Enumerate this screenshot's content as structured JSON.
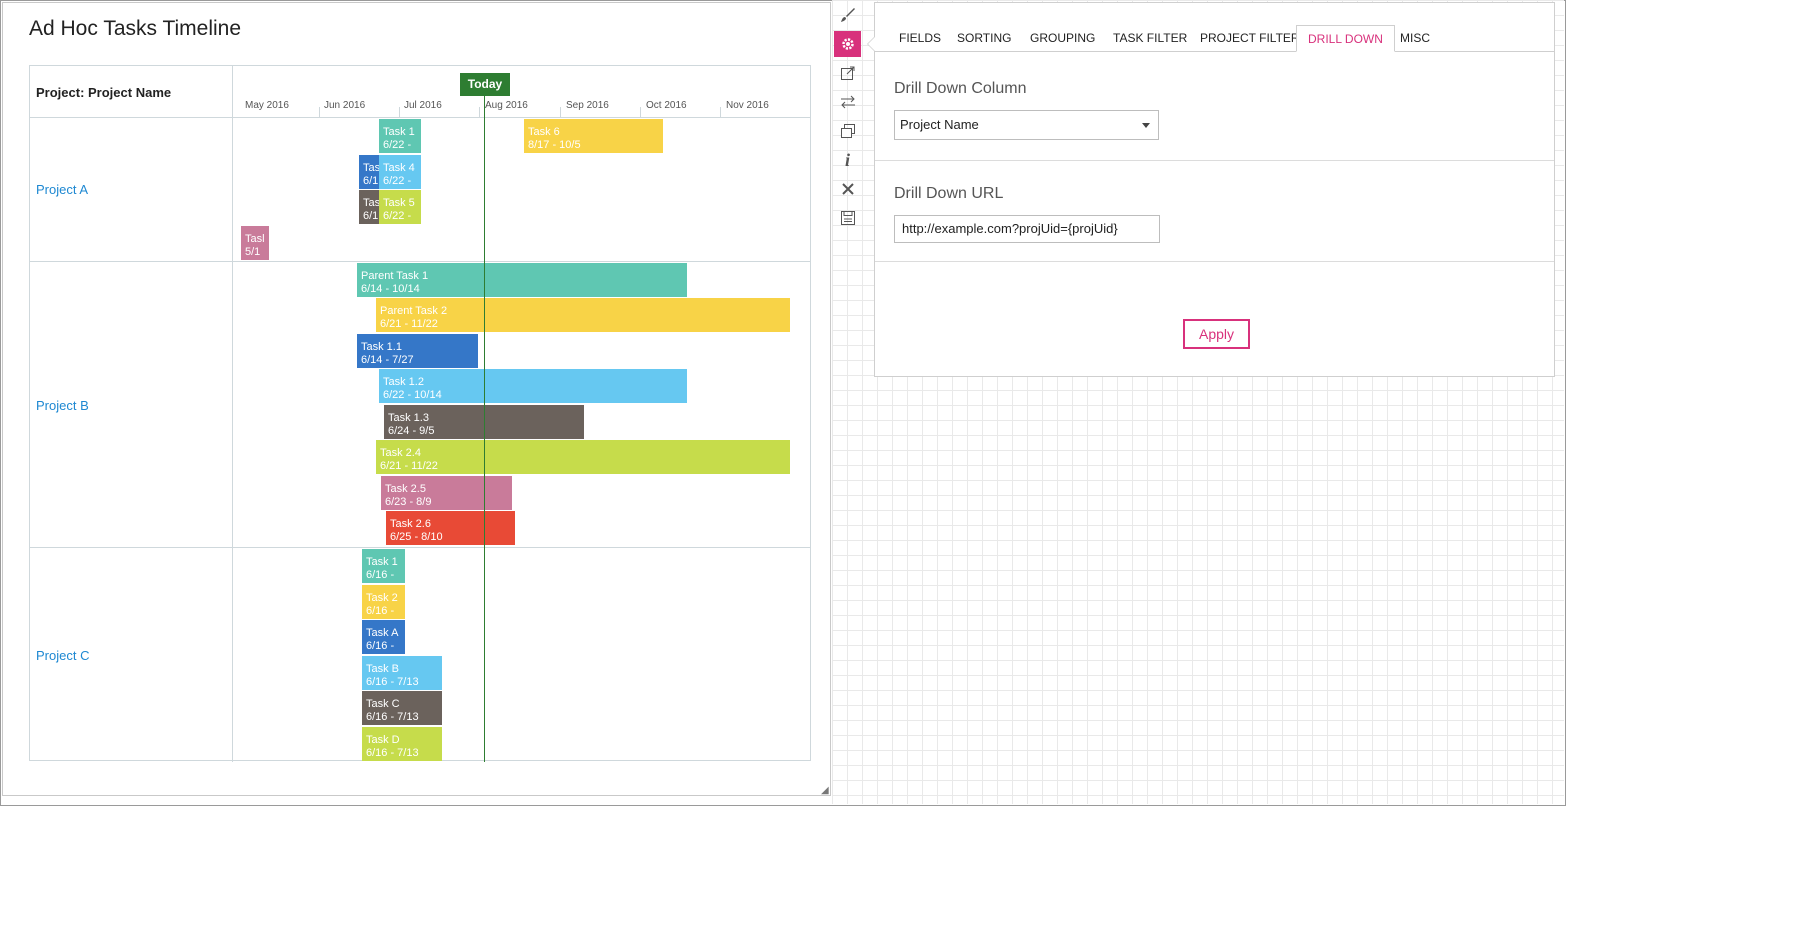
{
  "webpart": {
    "title": "Ad Hoc Tasks Timeline",
    "header_label": "Project: Project Name",
    "today_label": "Today",
    "months": [
      "May 2016",
      "Jun 2016",
      "Jul 2016",
      "Aug 2016",
      "Sep 2016",
      "Oct 2016",
      "Nov 2016"
    ],
    "lanes": [
      {
        "name": "Project A"
      },
      {
        "name": "Project B"
      },
      {
        "name": "Project C"
      }
    ],
    "bars": [
      {
        "lane": "Project A",
        "label": "Task 1",
        "dates": "6/22 -",
        "color": "#5fc7b2"
      },
      {
        "lane": "Project A",
        "label": "Task 6",
        "dates": "8/17 - 10/5",
        "color": "#f8d347"
      },
      {
        "lane": "Project A",
        "label": "Task",
        "dates": "6/1",
        "color": "#3577c8"
      },
      {
        "lane": "Project A",
        "label": "Task 4",
        "dates": "6/22 -",
        "color": "#66c8f1"
      },
      {
        "lane": "Project A",
        "label": "Task",
        "dates": "6/1",
        "color": "#6b625c"
      },
      {
        "lane": "Project A",
        "label": "Task 5",
        "dates": "6/22 -",
        "color": "#c6dc4b"
      },
      {
        "lane": "Project A",
        "label": "Tasl",
        "dates": "5/1",
        "color": "#c97b9a"
      },
      {
        "lane": "Project B",
        "label": "Parent Task 1",
        "dates": "6/14 - 10/14",
        "color": "#5fc7b2"
      },
      {
        "lane": "Project B",
        "label": "Parent Task 2",
        "dates": "6/21 - 11/22",
        "color": "#f8d347"
      },
      {
        "lane": "Project B",
        "label": "Task 1.1",
        "dates": "6/14 - 7/27",
        "color": "#3577c8"
      },
      {
        "lane": "Project B",
        "label": "Task 1.2",
        "dates": "6/22 - 10/14",
        "color": "#66c8f1"
      },
      {
        "lane": "Project B",
        "label": "Task 1.3",
        "dates": "6/24 - 9/5",
        "color": "#6b625c"
      },
      {
        "lane": "Project B",
        "label": "Task 2.4",
        "dates": "6/21 - 11/22",
        "color": "#c6dc4b"
      },
      {
        "lane": "Project B",
        "label": "Task 2.5",
        "dates": "6/23 - 8/9",
        "color": "#c97b9a"
      },
      {
        "lane": "Project B",
        "label": "Task 2.6",
        "dates": "6/25 - 8/10",
        "color": "#e84a36"
      },
      {
        "lane": "Project C",
        "label": "Task 1",
        "dates": "6/16 -",
        "color": "#5fc7b2"
      },
      {
        "lane": "Project C",
        "label": "Task 2",
        "dates": "6/16 -",
        "color": "#f8d347"
      },
      {
        "lane": "Project C",
        "label": "Task A",
        "dates": "6/16 -",
        "color": "#3577c8"
      },
      {
        "lane": "Project C",
        "label": "Task B",
        "dates": "6/16 - 7/13",
        "color": "#66c8f1"
      },
      {
        "lane": "Project C",
        "label": "Task C",
        "dates": "6/16 - 7/13",
        "color": "#6b625c"
      },
      {
        "lane": "Project C",
        "label": "Task D",
        "dates": "6/16 - 7/13",
        "color": "#c6dc4b"
      }
    ]
  },
  "toolbar": {
    "icons": [
      "brush-icon",
      "gear-icon",
      "export-icon",
      "swap-icon",
      "copy-icon",
      "info-icon",
      "close-icon",
      "save-icon"
    ],
    "active": "gear-icon",
    "accent": "#d8317c"
  },
  "settings": {
    "tabs": [
      "FIELDS",
      "SORTING",
      "GROUPING",
      "TASK FILTER",
      "PROJECT FILTER",
      "DRILL DOWN",
      "MISC"
    ],
    "active_tab": "DRILL DOWN",
    "drill_down_column_label": "Drill Down Column",
    "drill_down_column_value": "Project Name",
    "drill_down_url_label": "Drill Down URL",
    "drill_down_url_value": "http://example.com?projUid={projUid}",
    "apply_label": "Apply"
  }
}
